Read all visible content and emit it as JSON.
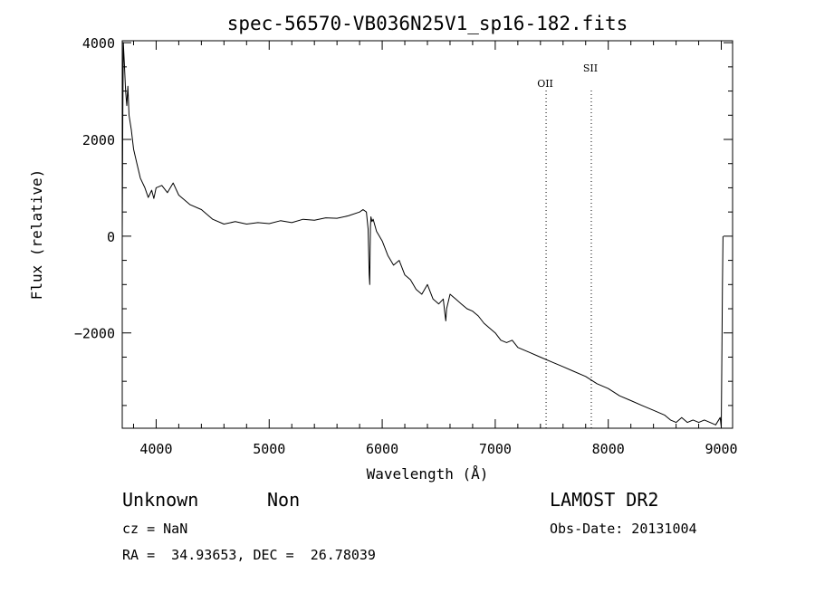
{
  "chart_data": {
    "type": "line",
    "title": "spec-56570-VB036N25V1_sp16-182.fits",
    "xlabel": "Wavelength (Å)",
    "ylabel": "Flux (relative)",
    "xlim": [
      3700,
      9100
    ],
    "ylim": [
      -3970,
      4040
    ],
    "xticks": [
      4000,
      5000,
      6000,
      7000,
      8000,
      9000
    ],
    "yticks": [
      -2000,
      0,
      2000,
      4000
    ],
    "ytick_labels": [
      "−2000",
      "0",
      "2000",
      "4000"
    ],
    "grid": false,
    "series": [
      {
        "x": [
          3700,
          3705,
          3710,
          3720,
          3730,
          3740,
          3750,
          3760,
          3780,
          3800,
          3830,
          3860,
          3900,
          3930,
          3960,
          3980,
          4000,
          4050,
          4100,
          4150,
          4200,
          4250,
          4300,
          4400,
          4500,
          4600,
          4700,
          4800,
          4900,
          5000,
          5100,
          5200,
          5300,
          5400,
          5500,
          5600,
          5700,
          5800,
          5830,
          5860,
          5875,
          5885,
          5890,
          5893,
          5896,
          5900,
          5910,
          5920,
          5950,
          6000,
          6050,
          6100,
          6150,
          6200,
          6250,
          6300,
          6350,
          6400,
          6450,
          6500,
          6540,
          6555,
          6563,
          6570,
          6600,
          6650,
          6700,
          6750,
          6800,
          6850,
          6900,
          6950,
          7000,
          7050,
          7100,
          7150,
          7200,
          7250,
          7300,
          7400,
          7500,
          7600,
          7700,
          7800,
          7900,
          8000,
          8100,
          8200,
          8300,
          8400,
          8500,
          8550,
          8600,
          8650,
          8700,
          8750,
          8800,
          8850,
          8900,
          8950,
          8990,
          9000,
          9010,
          9015
        ],
        "y": [
          0,
          2500,
          4000,
          3500,
          3000,
          2700,
          3100,
          2500,
          2200,
          1800,
          1500,
          1200,
          1000,
          800,
          950,
          780,
          1000,
          1050,
          900,
          1100,
          850,
          750,
          650,
          550,
          350,
          250,
          300,
          250,
          280,
          260,
          320,
          280,
          350,
          330,
          380,
          370,
          420,
          500,
          550,
          500,
          150,
          -800,
          -1000,
          -300,
          200,
          400,
          300,
          350,
          100,
          -100,
          -400,
          -600,
          -500,
          -800,
          -900,
          -1100,
          -1200,
          -1000,
          -1300,
          -1400,
          -1300,
          -1600,
          -1750,
          -1500,
          -1200,
          -1300,
          -1400,
          -1500,
          -1550,
          -1650,
          -1800,
          -1900,
          -2000,
          -2150,
          -2200,
          -2150,
          -2300,
          -2350,
          -2400,
          -2500,
          -2600,
          -2700,
          -2800,
          -2900,
          -3050,
          -3150,
          -3300,
          -3400,
          -3500,
          -3600,
          -3700,
          -3800,
          -3850,
          -3750,
          -3850,
          -3800,
          -3850,
          -3800,
          -3850,
          -3900,
          -3750,
          -3950,
          -1000,
          0
        ]
      }
    ],
    "annotations": [
      {
        "label": "OII",
        "x": 7450
      },
      {
        "label": "SII",
        "x": 7850
      }
    ]
  },
  "footer": {
    "class_label": "Unknown",
    "subclass_label": "Non",
    "survey_label": "LAMOST DR2",
    "cz_text": "cz = NaN",
    "obs_date_text": "Obs-Date: 20131004",
    "coords_text": "RA =  34.93653, DEC =  26.78039"
  }
}
